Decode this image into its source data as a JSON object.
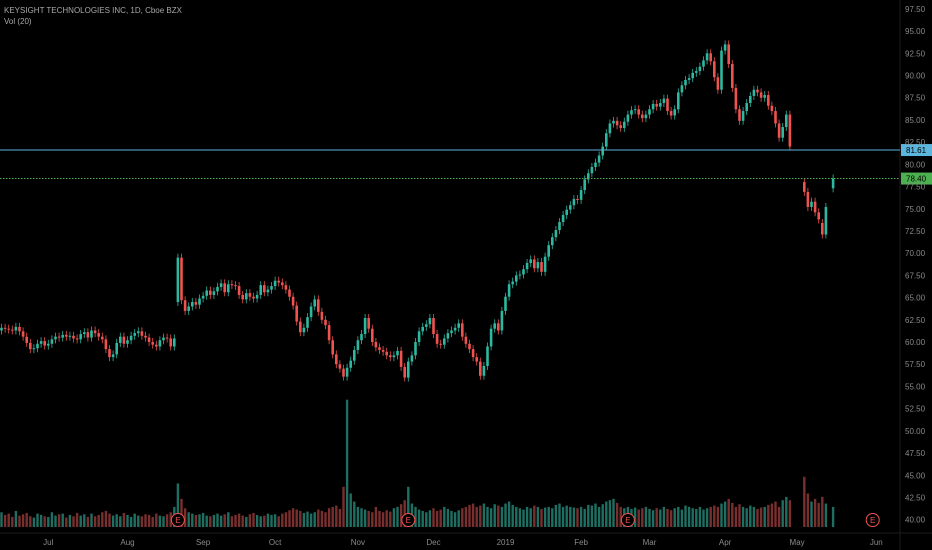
{
  "legend": {
    "symbol_line": "KEYSIGHT TECHNOLOGIES INC, 1D, Cboe BZX",
    "volume_line": "Vol (20)"
  },
  "colors": {
    "background": "#000000",
    "up": "#2eb8a1",
    "down": "#ef5350",
    "volume_up": "#1f6e62",
    "volume_down": "#7a2f2f",
    "axis_text": "#8a8a8a",
    "hline_solid": "#5bb5dc",
    "hline_dotted": "#4caf50",
    "earnings": "#ef5350"
  },
  "chart_data": {
    "type": "candlestick",
    "y_axis": {
      "side": "right",
      "ylim": [
        38.5,
        98.5
      ],
      "ticks": [
        "40.00",
        "42.50",
        "45.00",
        "47.50",
        "50.00",
        "52.50",
        "55.00",
        "57.50",
        "60.00",
        "62.50",
        "65.00",
        "67.50",
        "70.00",
        "72.50",
        "75.00",
        "77.50",
        "80.00",
        "82.50",
        "85.00",
        "87.50",
        "90.00",
        "92.50",
        "95.00",
        "97.50"
      ]
    },
    "x_axis": {
      "ticks": [
        {
          "label": "Jul",
          "index": 13
        },
        {
          "label": "Aug",
          "index": 35
        },
        {
          "label": "Sep",
          "index": 56
        },
        {
          "label": "Oct",
          "index": 76
        },
        {
          "label": "Nov",
          "index": 99
        },
        {
          "label": "Dec",
          "index": 120
        },
        {
          "label": "2019",
          "index": 140
        },
        {
          "label": "Feb",
          "index": 161
        },
        {
          "label": "Mar",
          "index": 180
        },
        {
          "label": "Apr",
          "index": 201
        },
        {
          "label": "May",
          "index": 221
        },
        {
          "label": "Jun",
          "index": 243
        }
      ]
    },
    "price_lines": [
      {
        "value": 81.61,
        "label": "81.61",
        "style": "solid"
      },
      {
        "value": 78.4,
        "label": "78.40",
        "style": "dotted"
      }
    ],
    "earnings_markers": [
      {
        "index": 49,
        "label": "E"
      },
      {
        "index": 113,
        "label": "E"
      },
      {
        "index": 174,
        "label": "E"
      },
      {
        "index": 242,
        "label": "E"
      }
    ],
    "closes": [
      61.6,
      61.5,
      61.4,
      61.3,
      61.7,
      61.2,
      60.6,
      59.9,
      59.2,
      59.3,
      59.8,
      60.1,
      59.6,
      59.8,
      60.3,
      60.6,
      60.5,
      60.8,
      60.6,
      60.7,
      60.4,
      60.3,
      60.9,
      61.1,
      60.5,
      61.3,
      61.0,
      60.6,
      60.3,
      59.2,
      58.3,
      58.6,
      59.9,
      60.6,
      59.8,
      60.2,
      60.7,
      61.0,
      61.2,
      60.7,
      60.5,
      60.0,
      59.7,
      59.5,
      60.2,
      60.5,
      60.4,
      59.5,
      60.4,
      69.5,
      64.7,
      63.5,
      64.0,
      64.5,
      64.2,
      64.9,
      65.2,
      65.8,
      65.3,
      65.7,
      66.2,
      66.6,
      65.6,
      66.5,
      66.4,
      66.3,
      65.3,
      64.8,
      65.5,
      65.1,
      64.9,
      65.3,
      66.4,
      65.6,
      65.9,
      66.3,
      66.9,
      66.7,
      66.4,
      65.9,
      65.1,
      64.1,
      62.3,
      61.1,
      61.6,
      62.8,
      64.0,
      64.8,
      63.4,
      62.5,
      61.9,
      60.2,
      58.6,
      57.5,
      57.0,
      56.1,
      57.1,
      57.9,
      59.1,
      60.2,
      60.9,
      62.7,
      61.5,
      60.0,
      59.4,
      59.1,
      58.9,
      58.5,
      58.3,
      58.5,
      59.0,
      57.2,
      56.0,
      57.8,
      58.5,
      60.0,
      61.2,
      61.7,
      62.0,
      62.7,
      60.9,
      59.8,
      59.7,
      60.4,
      61.0,
      61.3,
      61.6,
      62.1,
      60.6,
      59.8,
      59.2,
      58.3,
      57.8,
      56.2,
      57.3,
      59.5,
      61.5,
      62.1,
      61.3,
      63.5,
      65.1,
      66.5,
      66.8,
      67.5,
      67.6,
      68.2,
      68.9,
      69.3,
      68.3,
      69.0,
      67.9,
      69.6,
      70.9,
      71.8,
      72.6,
      73.5,
      74.3,
      74.9,
      75.4,
      76.1,
      76.0,
      77.1,
      78.3,
      79.0,
      79.7,
      80.2,
      81.0,
      82.0,
      83.5,
      84.6,
      84.9,
      84.4,
      84.1,
      84.8,
      85.6,
      86.1,
      86.2,
      85.6,
      85.2,
      85.6,
      86.2,
      86.8,
      86.5,
      86.9,
      87.4,
      86.0,
      85.5,
      86.2,
      88.1,
      88.9,
      89.5,
      89.7,
      90.3,
      90.5,
      91.0,
      91.7,
      92.5,
      91.6,
      89.8,
      88.4,
      92.8,
      93.5,
      91.3,
      88.6,
      86.2,
      84.9,
      86.0,
      86.9,
      87.7,
      88.4,
      88.1,
      87.5,
      87.8,
      86.6,
      86.0,
      84.6,
      83.0,
      84.2,
      85.6,
      82.0,
      0,
      0,
      0,
      76.9,
      75.2,
      75.8,
      74.6,
      73.8,
      72.1,
      75.2,
      0,
      78.4
    ],
    "opens": [
      61.3,
      61.6,
      61.5,
      61.4,
      61.3,
      61.7,
      61.2,
      60.6,
      59.9,
      59.2,
      59.3,
      59.8,
      60.1,
      59.6,
      59.8,
      60.3,
      60.6,
      60.5,
      60.8,
      60.6,
      60.7,
      60.4,
      60.3,
      60.9,
      61.1,
      60.5,
      61.3,
      61.0,
      60.6,
      60.3,
      59.2,
      58.3,
      58.6,
      59.9,
      60.6,
      59.8,
      60.2,
      60.7,
      61.0,
      61.2,
      60.7,
      60.5,
      60.0,
      59.7,
      59.5,
      60.2,
      60.5,
      60.4,
      59.5,
      64.5,
      69.5,
      64.7,
      63.5,
      64.0,
      64.5,
      64.2,
      64.9,
      65.2,
      65.8,
      65.3,
      65.7,
      66.2,
      66.6,
      65.6,
      66.5,
      66.4,
      66.3,
      65.3,
      64.8,
      65.5,
      65.1,
      64.9,
      65.3,
      66.4,
      65.6,
      65.9,
      66.3,
      66.9,
      66.7,
      66.4,
      65.9,
      65.1,
      64.1,
      62.3,
      61.1,
      61.6,
      62.8,
      64.0,
      64.8,
      63.4,
      62.5,
      61.9,
      60.2,
      58.6,
      57.5,
      57.0,
      56.1,
      57.1,
      57.9,
      59.1,
      60.2,
      60.9,
      62.7,
      61.5,
      60.0,
      59.4,
      59.1,
      58.9,
      58.5,
      58.3,
      58.5,
      59.0,
      57.2,
      56.0,
      57.8,
      58.5,
      60.0,
      61.2,
      61.7,
      62.0,
      62.7,
      60.9,
      59.8,
      59.7,
      60.4,
      61.0,
      61.3,
      61.6,
      62.1,
      60.6,
      59.8,
      59.2,
      58.3,
      57.8,
      56.2,
      57.3,
      59.5,
      61.5,
      62.1,
      61.3,
      63.5,
      65.1,
      66.5,
      66.8,
      67.5,
      67.6,
      68.2,
      68.9,
      69.3,
      68.3,
      69.0,
      67.9,
      69.6,
      70.9,
      71.8,
      72.6,
      73.5,
      74.3,
      74.9,
      75.4,
      76.1,
      76.0,
      77.1,
      78.3,
      79.0,
      79.7,
      80.2,
      81.0,
      82.0,
      83.5,
      84.6,
      84.9,
      84.4,
      84.1,
      84.8,
      85.6,
      86.1,
      86.2,
      85.6,
      85.2,
      85.6,
      86.2,
      86.8,
      86.5,
      86.9,
      87.4,
      86.0,
      85.5,
      86.2,
      88.1,
      88.9,
      89.5,
      89.7,
      90.3,
      90.5,
      91.0,
      91.7,
      92.5,
      91.6,
      89.8,
      88.4,
      92.8,
      93.5,
      91.3,
      88.6,
      86.2,
      84.9,
      86.0,
      86.9,
      87.7,
      88.4,
      88.1,
      87.5,
      87.8,
      86.6,
      86.0,
      84.6,
      83.0,
      84.2,
      85.6,
      0,
      0,
      0,
      78.0,
      76.9,
      75.2,
      75.8,
      74.6,
      73.4,
      72.1,
      0,
      77.3
    ],
    "volume_ratio": [
      0.22,
      0.18,
      0.2,
      0.15,
      0.24,
      0.17,
      0.19,
      0.21,
      0.16,
      0.14,
      0.2,
      0.18,
      0.16,
      0.15,
      0.22,
      0.17,
      0.19,
      0.2,
      0.14,
      0.18,
      0.16,
      0.21,
      0.17,
      0.19,
      0.15,
      0.2,
      0.16,
      0.18,
      0.22,
      0.24,
      0.2,
      0.17,
      0.19,
      0.16,
      0.21,
      0.18,
      0.15,
      0.2,
      0.17,
      0.16,
      0.19,
      0.18,
      0.15,
      0.2,
      0.17,
      0.16,
      0.19,
      0.22,
      0.3,
      0.65,
      0.42,
      0.28,
      0.22,
      0.2,
      0.18,
      0.19,
      0.21,
      0.17,
      0.16,
      0.18,
      0.2,
      0.17,
      0.19,
      0.22,
      0.16,
      0.18,
      0.2,
      0.17,
      0.15,
      0.19,
      0.21,
      0.18,
      0.16,
      0.17,
      0.2,
      0.18,
      0.19,
      0.16,
      0.2,
      0.22,
      0.25,
      0.28,
      0.26,
      0.24,
      0.21,
      0.23,
      0.2,
      0.22,
      0.26,
      0.24,
      0.22,
      0.28,
      0.3,
      0.32,
      0.27,
      0.6,
      1.9,
      0.5,
      0.38,
      0.3,
      0.28,
      0.26,
      0.24,
      0.22,
      0.3,
      0.24,
      0.22,
      0.25,
      0.23,
      0.28,
      0.3,
      0.34,
      0.4,
      0.6,
      0.35,
      0.3,
      0.26,
      0.24,
      0.22,
      0.25,
      0.28,
      0.24,
      0.26,
      0.3,
      0.27,
      0.24,
      0.22,
      0.25,
      0.28,
      0.3,
      0.33,
      0.35,
      0.3,
      0.32,
      0.35,
      0.3,
      0.28,
      0.34,
      0.32,
      0.3,
      0.35,
      0.38,
      0.33,
      0.3,
      0.28,
      0.26,
      0.3,
      0.28,
      0.32,
      0.3,
      0.27,
      0.29,
      0.3,
      0.28,
      0.33,
      0.35,
      0.3,
      0.32,
      0.3,
      0.29,
      0.28,
      0.3,
      0.27,
      0.33,
      0.32,
      0.35,
      0.3,
      0.34,
      0.38,
      0.4,
      0.42,
      0.36,
      0.3,
      0.28,
      0.3,
      0.27,
      0.29,
      0.26,
      0.28,
      0.3,
      0.27,
      0.25,
      0.28,
      0.26,
      0.3,
      0.27,
      0.25,
      0.28,
      0.3,
      0.26,
      0.32,
      0.3,
      0.28,
      0.27,
      0.3,
      0.26,
      0.28,
      0.3,
      0.32,
      0.3,
      0.35,
      0.38,
      0.42,
      0.36,
      0.3,
      0.34,
      0.3,
      0.28,
      0.32,
      0.3,
      0.27,
      0.29,
      0.3,
      0.33,
      0.35,
      0.38,
      0.3,
      0.4,
      0.45,
      0.4,
      0,
      0,
      0,
      0.75,
      0.5,
      0.38,
      0.42,
      0.36,
      0.45,
      0.35,
      0,
      0.3
    ]
  }
}
